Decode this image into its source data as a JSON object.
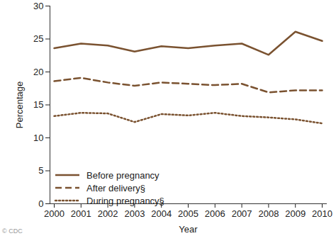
{
  "chart_data": {
    "type": "line",
    "x_label": "Year",
    "y_label": "Percentage",
    "caption": "© CDC",
    "x": [
      2000,
      2001,
      2002,
      2003,
      2004,
      2005,
      2006,
      2007,
      2008,
      2009,
      2010
    ],
    "xlim": [
      2000,
      2010
    ],
    "xticks": [
      2000,
      2001,
      2002,
      2003,
      2004,
      2005,
      2006,
      2007,
      2008,
      2009,
      2010
    ],
    "ylim": [
      0,
      30
    ],
    "yticks": [
      0,
      5,
      10,
      15,
      20,
      25,
      30
    ],
    "grid": false,
    "legend": "lower left",
    "series": [
      {
        "name": "Before pregnancy",
        "color": "#7a5230",
        "line_style": "solid",
        "values": [
          23.6,
          24.3,
          24.0,
          23.1,
          23.9,
          23.6,
          24.0,
          24.3,
          22.6,
          26.1,
          24.7
        ]
      },
      {
        "name": "After delivery§",
        "color": "#7a5230",
        "line_style": "dashed",
        "values": [
          18.6,
          19.1,
          18.4,
          17.9,
          18.4,
          18.2,
          18.0,
          18.2,
          16.9,
          17.2,
          17.2
        ]
      },
      {
        "name": "During pregnancy§",
        "color": "#7a5230",
        "line_style": "dotted",
        "values": [
          13.3,
          13.8,
          13.7,
          12.4,
          13.6,
          13.4,
          13.8,
          13.3,
          13.1,
          12.8,
          12.2
        ]
      }
    ]
  }
}
